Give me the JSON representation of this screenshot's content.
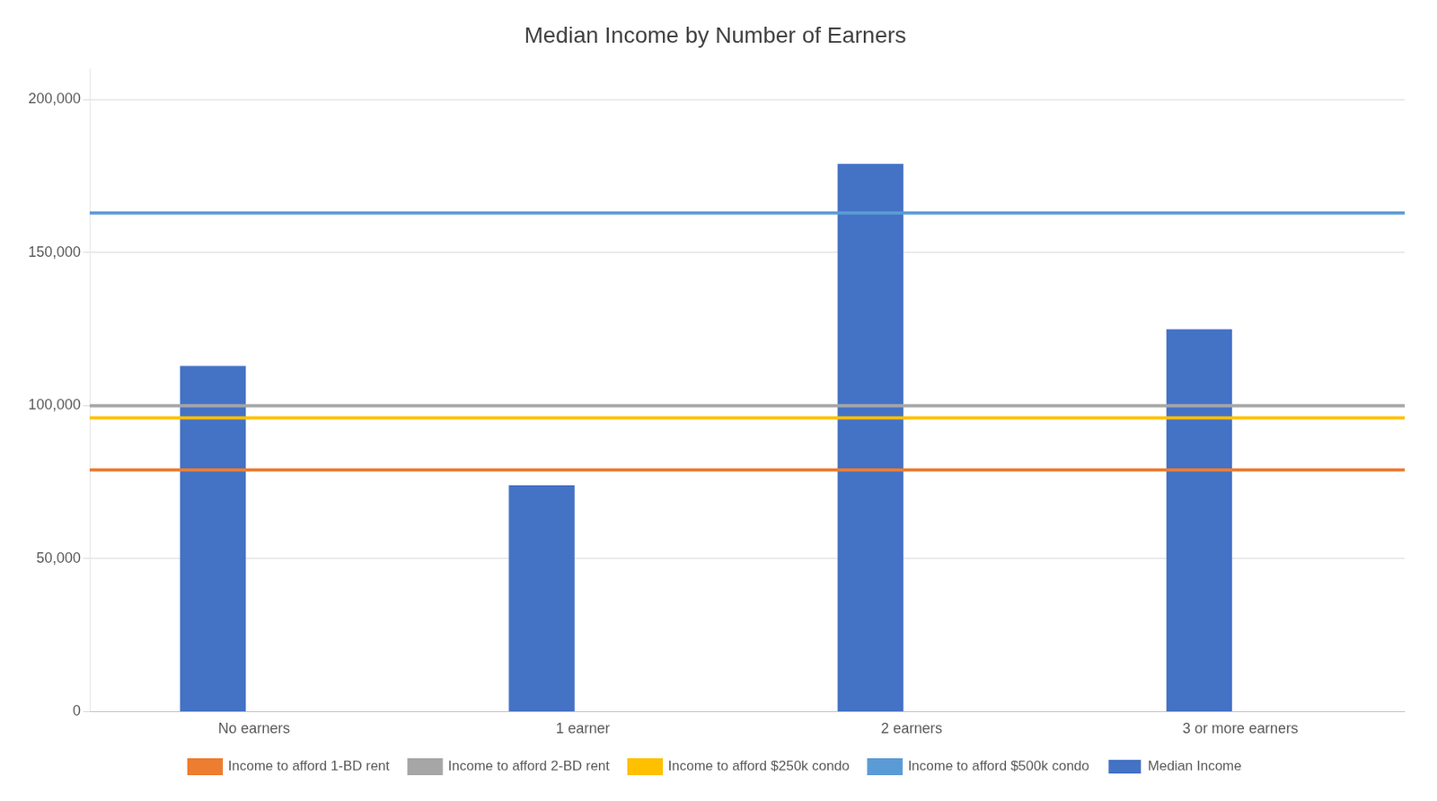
{
  "chart_data": {
    "type": "bar",
    "title": "Median Income by Number of Earners",
    "categories": [
      "No earners",
      "1 earner",
      "2 earners",
      "3 or more earners"
    ],
    "series": [
      {
        "name": "Median Income",
        "type": "bar",
        "color": "#4472C4",
        "values": [
          113000,
          74000,
          179000,
          125000
        ]
      }
    ],
    "hlines": [
      {
        "name": "Income to afford 1-BD rent",
        "value": 79000,
        "color": "#ED7D31"
      },
      {
        "name": "Income to afford 2-BD rent",
        "value": 100000,
        "color": "#A6A6A6"
      },
      {
        "name": "Income to afford $250k condo",
        "value": 96000,
        "color": "#FFC000"
      },
      {
        "name": "Income to afford $500k condo",
        "value": 163000,
        "color": "#5B9BD5"
      }
    ],
    "ylim": [
      0,
      210000
    ],
    "yticks": [
      0,
      {
        "value": 50000,
        "label": "50,000"
      },
      {
        "value": 100000,
        "label": "100,000"
      },
      {
        "value": 150000,
        "label": "150,000"
      },
      {
        "value": 200000,
        "label": "200,000"
      }
    ],
    "grid": "y",
    "legend": "bottom"
  }
}
